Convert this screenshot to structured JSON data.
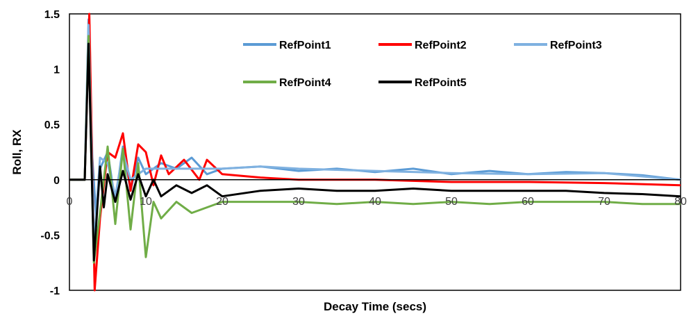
{
  "chart_data": {
    "type": "line",
    "title": "",
    "xlabel": "Decay Time (secs)",
    "ylabel": "Roll, RX",
    "xlim": [
      0,
      80
    ],
    "ylim": [
      -1,
      1.5
    ],
    "x_ticks": [
      0,
      10,
      20,
      30,
      40,
      50,
      60,
      70,
      80
    ],
    "y_ticks": [
      -1,
      -0.5,
      0,
      0.5,
      1,
      1.5
    ],
    "y_tick_labels": [
      "-1",
      "-0.5",
      "0",
      "0.5",
      "1",
      "1.5"
    ],
    "grid": false,
    "legend_position": "top-right",
    "series": [
      {
        "name": "RefPoint1",
        "color": "#5b9bd5",
        "points": [
          [
            0,
            0
          ],
          [
            2,
            0
          ],
          [
            2.5,
            1.45
          ],
          [
            3,
            0.2
          ],
          [
            3.5,
            -0.35
          ],
          [
            4,
            0.1
          ],
          [
            5,
            0.25
          ],
          [
            6,
            -0.2
          ],
          [
            7,
            0.3
          ],
          [
            8,
            -0.1
          ],
          [
            9,
            0.2
          ],
          [
            10,
            0.05
          ],
          [
            12,
            0.15
          ],
          [
            14,
            0.1
          ],
          [
            16,
            0.2
          ],
          [
            18,
            0.05
          ],
          [
            20,
            0.1
          ],
          [
            25,
            0.12
          ],
          [
            30,
            0.08
          ],
          [
            35,
            0.1
          ],
          [
            40,
            0.07
          ],
          [
            45,
            0.1
          ],
          [
            50,
            0.05
          ],
          [
            55,
            0.08
          ],
          [
            60,
            0.05
          ],
          [
            65,
            0.07
          ],
          [
            70,
            0.06
          ],
          [
            75,
            0.04
          ],
          [
            80,
            0.0
          ]
        ]
      },
      {
        "name": "RefPoint2",
        "color": "#ff0000",
        "points": [
          [
            0,
            0
          ],
          [
            2,
            0
          ],
          [
            2.6,
            1.5
          ],
          [
            3.3,
            -1.0
          ],
          [
            4,
            -0.35
          ],
          [
            5,
            0.25
          ],
          [
            6,
            0.2
          ],
          [
            7,
            0.42
          ],
          [
            8,
            -0.1
          ],
          [
            9,
            0.32
          ],
          [
            10,
            0.25
          ],
          [
            11,
            -0.05
          ],
          [
            12,
            0.22
          ],
          [
            13,
            0.05
          ],
          [
            15,
            0.18
          ],
          [
            17,
            0.0
          ],
          [
            18,
            0.18
          ],
          [
            20,
            0.05
          ],
          [
            25,
            0.02
          ],
          [
            30,
            0.0
          ],
          [
            40,
            0.0
          ],
          [
            50,
            -0.02
          ],
          [
            60,
            -0.02
          ],
          [
            70,
            -0.03
          ],
          [
            80,
            -0.05
          ]
        ]
      },
      {
        "name": "RefPoint3",
        "color": "#7fb1e0",
        "points": [
          [
            0,
            0
          ],
          [
            2,
            0
          ],
          [
            2.5,
            1.4
          ],
          [
            3.2,
            -0.6
          ],
          [
            4,
            0.2
          ],
          [
            5,
            0.15
          ],
          [
            6,
            -0.15
          ],
          [
            7,
            0.25
          ],
          [
            8,
            0.0
          ],
          [
            10,
            0.1
          ],
          [
            15,
            0.1
          ],
          [
            20,
            0.1
          ],
          [
            25,
            0.12
          ],
          [
            30,
            0.1
          ],
          [
            40,
            0.08
          ],
          [
            50,
            0.06
          ],
          [
            60,
            0.05
          ],
          [
            70,
            0.06
          ],
          [
            80,
            0.0
          ]
        ]
      },
      {
        "name": "RefPoint4",
        "color": "#70ad47",
        "points": [
          [
            0,
            0
          ],
          [
            2,
            0
          ],
          [
            2.5,
            1.3
          ],
          [
            3.2,
            -0.75
          ],
          [
            4,
            -0.3
          ],
          [
            5,
            0.3
          ],
          [
            6,
            -0.4
          ],
          [
            7,
            0.28
          ],
          [
            8,
            -0.45
          ],
          [
            9,
            0.15
          ],
          [
            10,
            -0.7
          ],
          [
            11,
            -0.2
          ],
          [
            12,
            -0.35
          ],
          [
            14,
            -0.2
          ],
          [
            16,
            -0.3
          ],
          [
            18,
            -0.25
          ],
          [
            20,
            -0.2
          ],
          [
            25,
            -0.2
          ],
          [
            30,
            -0.2
          ],
          [
            35,
            -0.22
          ],
          [
            40,
            -0.2
          ],
          [
            45,
            -0.22
          ],
          [
            50,
            -0.2
          ],
          [
            55,
            -0.22
          ],
          [
            60,
            -0.2
          ],
          [
            65,
            -0.2
          ],
          [
            70,
            -0.2
          ],
          [
            75,
            -0.22
          ],
          [
            80,
            -0.22
          ]
        ]
      },
      {
        "name": "RefPoint5",
        "color": "#000000",
        "points": [
          [
            0,
            0
          ],
          [
            2,
            0
          ],
          [
            2.5,
            1.23
          ],
          [
            3.2,
            -0.73
          ],
          [
            4,
            0.12
          ],
          [
            4.5,
            -0.25
          ],
          [
            5,
            0.05
          ],
          [
            6,
            -0.2
          ],
          [
            7,
            0.08
          ],
          [
            8,
            -0.18
          ],
          [
            9,
            0.05
          ],
          [
            10,
            -0.15
          ],
          [
            11,
            0.0
          ],
          [
            12,
            -0.15
          ],
          [
            14,
            -0.05
          ],
          [
            16,
            -0.12
          ],
          [
            18,
            -0.05
          ],
          [
            20,
            -0.15
          ],
          [
            25,
            -0.1
          ],
          [
            30,
            -0.08
          ],
          [
            35,
            -0.1
          ],
          [
            40,
            -0.1
          ],
          [
            45,
            -0.08
          ],
          [
            50,
            -0.1
          ],
          [
            55,
            -0.1
          ],
          [
            60,
            -0.1
          ],
          [
            65,
            -0.1
          ],
          [
            70,
            -0.12
          ],
          [
            75,
            -0.13
          ],
          [
            80,
            -0.15
          ]
        ]
      }
    ]
  }
}
